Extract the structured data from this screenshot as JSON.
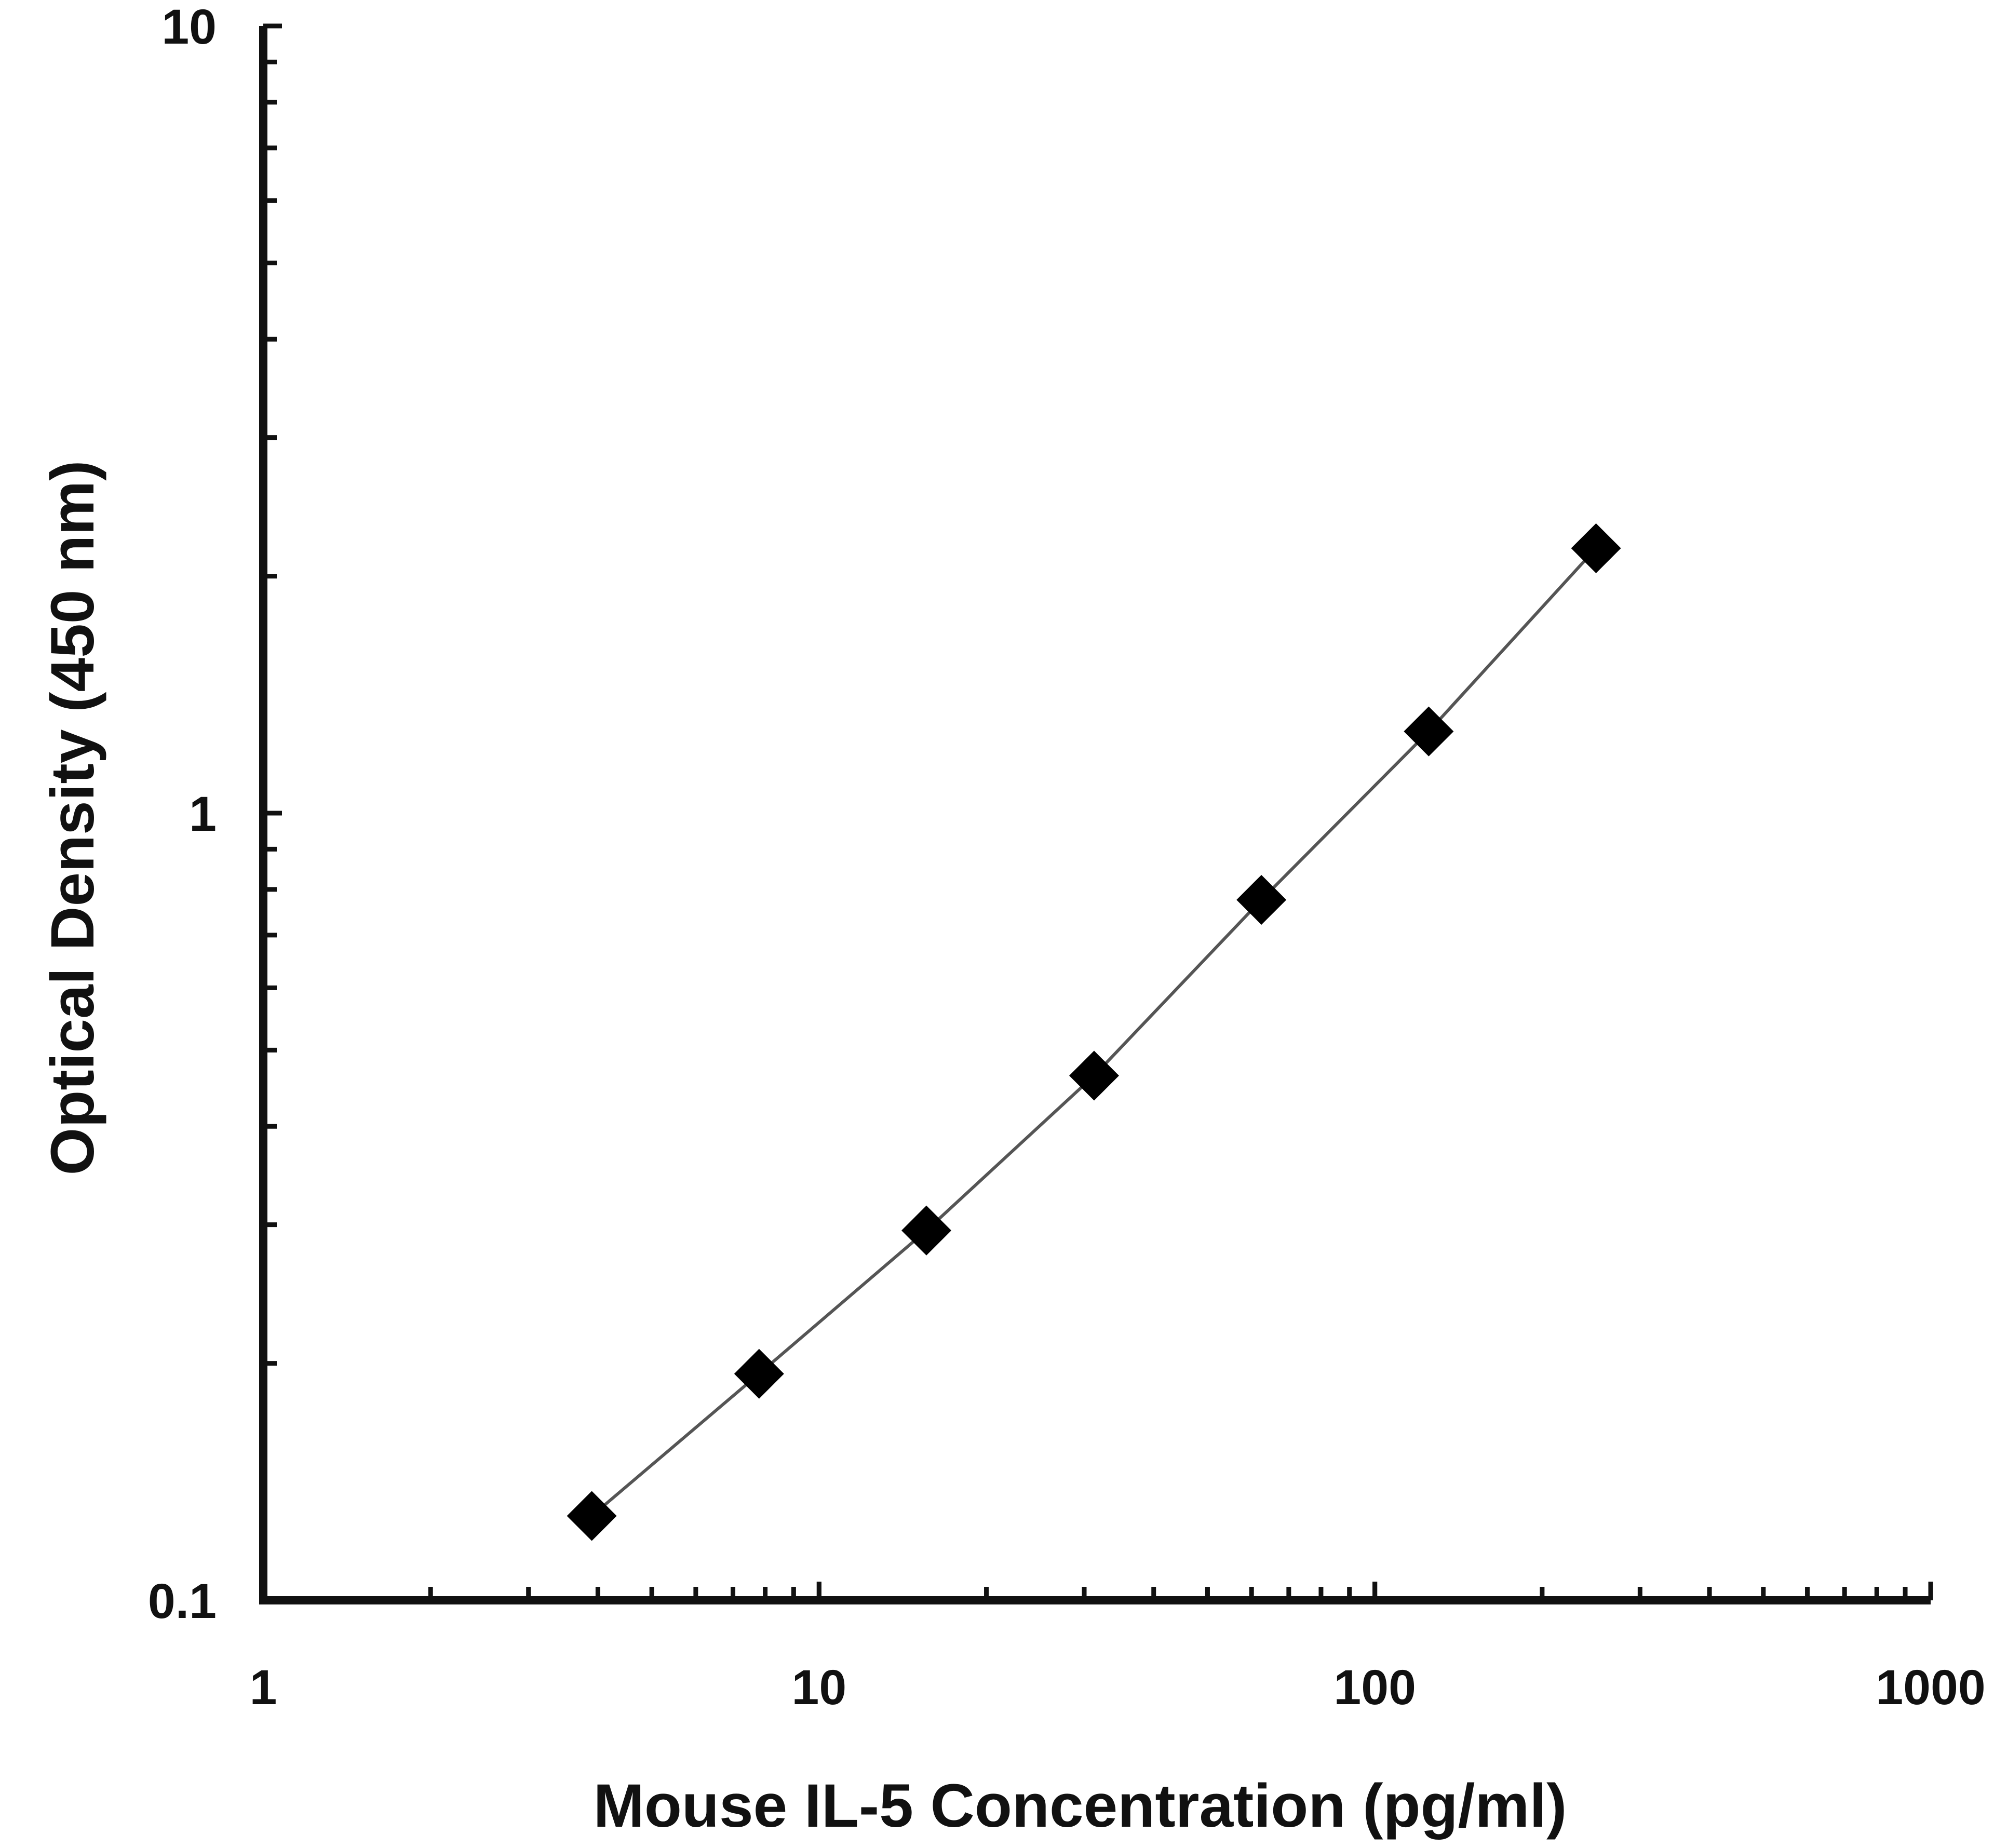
{
  "chart_data": {
    "type": "scatter",
    "title": "",
    "xlabel": "Mouse IL-5 Concentration (pg/ml)",
    "ylabel": "Optical Density (450 nm)",
    "xscale": "log",
    "yscale": "log",
    "xlim": [
      1,
      1000
    ],
    "ylim": [
      0.1,
      10
    ],
    "x_ticks": [
      1,
      10,
      100,
      1000
    ],
    "x_tick_labels": [
      "1",
      "10",
      "100",
      "1000"
    ],
    "y_ticks": [
      0.1,
      1,
      10
    ],
    "y_tick_labels": [
      "0.1",
      "1",
      "10"
    ],
    "grid": false,
    "legend": "none",
    "marker": "diamond",
    "series": [
      {
        "x": [
          3.9,
          7.8,
          15.6,
          31.25,
          62.5,
          125,
          250
        ],
        "values": [
          0.128,
          0.194,
          0.295,
          0.464,
          0.776,
          1.27,
          2.17
        ]
      }
    ],
    "fit_line": true,
    "colors": {
      "axis": "#111111",
      "marker": "#000000",
      "line": "#555555",
      "background": "#ffffff"
    }
  }
}
